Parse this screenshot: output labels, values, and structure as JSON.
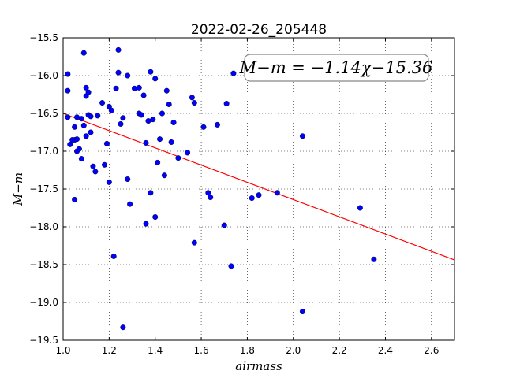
{
  "chart_data": {
    "type": "scatter",
    "title": "2022-02-26_205448",
    "xlabel": "airmass",
    "ylabel": "M−m",
    "xlim": [
      1.0,
      2.7
    ],
    "ylim": [
      -15.5,
      -19.5
    ],
    "y_inverted": true,
    "grid": true,
    "x_ticks": [
      1.0,
      1.2,
      1.4,
      1.6,
      1.8,
      2.0,
      2.2,
      2.4,
      2.6
    ],
    "x_tick_labels": [
      "1.0",
      "1.2",
      "1.4",
      "1.6",
      "1.8",
      "2.0",
      "2.2",
      "2.4",
      "2.6"
    ],
    "y_ticks": [
      -15.5,
      -16.0,
      -16.5,
      -17.0,
      -17.5,
      -18.0,
      -18.5,
      -19.0,
      -19.5
    ],
    "y_tick_labels": [
      "−15.5",
      "−16.0",
      "−16.5",
      "−17.0",
      "−17.5",
      "−18.0",
      "−18.5",
      "−19.0",
      "−19.5"
    ],
    "annotation": "M−m = −1.14χ−15.36",
    "fit": {
      "slope": -1.14,
      "intercept": -15.36,
      "color": "#ff0000"
    },
    "marker_color": "#0000ff",
    "points": {
      "x": [
        1.02,
        1.02,
        1.02,
        1.03,
        1.04,
        1.05,
        1.05,
        1.05,
        1.06,
        1.06,
        1.07,
        1.08,
        1.08,
        1.09,
        1.09,
        1.1,
        1.1,
        1.1,
        1.11,
        1.11,
        1.12,
        1.12,
        1.13,
        1.14,
        1.15,
        1.17,
        1.18,
        1.19,
        1.2,
        1.2,
        1.21,
        1.22,
        1.23,
        1.24,
        1.24,
        1.25,
        1.26,
        1.28,
        1.28,
        1.29,
        1.31,
        1.33,
        1.33,
        1.34,
        1.35,
        1.36,
        1.36,
        1.37,
        1.38,
        1.38,
        1.39,
        1.4,
        1.4,
        1.41,
        1.42,
        1.43,
        1.44,
        1.45,
        1.46,
        1.47,
        1.48,
        1.5,
        1.54,
        1.56,
        1.57,
        1.57,
        1.61,
        1.63,
        1.64,
        1.67,
        1.7,
        1.71,
        1.73,
        1.74,
        1.82,
        1.85,
        1.93,
        2.04,
        2.04,
        2.29,
        2.35,
        1.26,
        1.06
      ],
      "y": [
        -15.98,
        -16.2,
        -16.55,
        -16.91,
        -16.85,
        -16.85,
        -16.68,
        -17.64,
        -17.0,
        -16.84,
        -16.97,
        -17.1,
        -16.57,
        -16.66,
        -15.7,
        -16.27,
        -16.16,
        -16.8,
        -16.22,
        -16.52,
        -16.75,
        -16.54,
        -17.2,
        -17.27,
        -16.53,
        -16.36,
        -17.18,
        -16.9,
        -16.41,
        -17.41,
        -16.46,
        -18.39,
        -16.17,
        -15.96,
        -15.66,
        -16.64,
        -19.33,
        -16.0,
        -17.37,
        -17.7,
        -16.17,
        -16.16,
        -16.5,
        -16.52,
        -16.26,
        -16.89,
        -17.96,
        -16.6,
        -15.95,
        -17.55,
        -16.58,
        -16.04,
        -17.87,
        -17.15,
        -16.84,
        -16.5,
        -17.32,
        -16.2,
        -16.38,
        -16.88,
        -16.62,
        -17.09,
        -17.02,
        -16.29,
        -16.36,
        -18.21,
        -16.68,
        -17.55,
        -17.61,
        -16.65,
        -17.98,
        -16.37,
        -18.52,
        -15.97,
        -17.62,
        -17.58,
        -17.55,
        -16.8,
        -19.12,
        -17.75,
        -18.43,
        -16.56,
        -16.55
      ]
    }
  }
}
